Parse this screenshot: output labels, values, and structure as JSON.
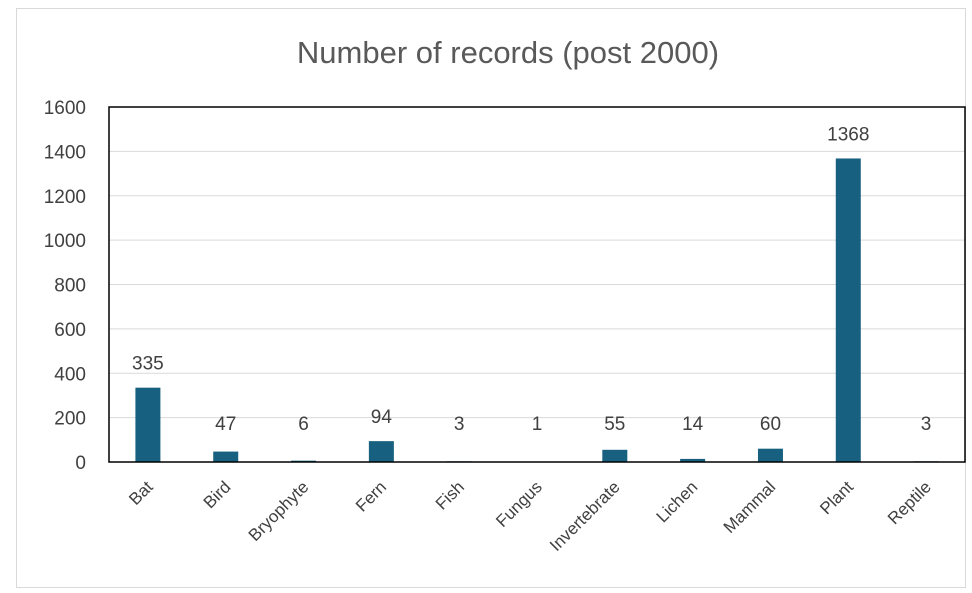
{
  "chart_data": {
    "type": "bar",
    "title": "Number of records (post 2000)",
    "xlabel": "",
    "ylabel": "",
    "categories": [
      "Bat",
      "Bird",
      "Bryophyte",
      "Fern",
      "Fish",
      "Fungus",
      "Invertebrate",
      "Lichen",
      "Mammal",
      "Plant",
      "Reptile"
    ],
    "values": [
      335,
      47,
      6,
      94,
      3,
      1,
      55,
      14,
      60,
      1368,
      3
    ],
    "data_labels": [
      "335",
      "47",
      "6",
      "94",
      "3",
      "1",
      "55",
      "14",
      "60",
      "1368",
      "3"
    ],
    "ylim": [
      0,
      1600
    ],
    "yticks": [
      0,
      200,
      400,
      600,
      800,
      1000,
      1200,
      1400,
      1600
    ],
    "ytick_labels": [
      "0",
      "200",
      "400",
      "600",
      "800",
      "1000",
      "1200",
      "1400",
      "1600"
    ],
    "grid": true,
    "legend": "none",
    "bar_color": "#17607f",
    "grid_color": "#d9d9d9",
    "text_color": "#404040"
  }
}
